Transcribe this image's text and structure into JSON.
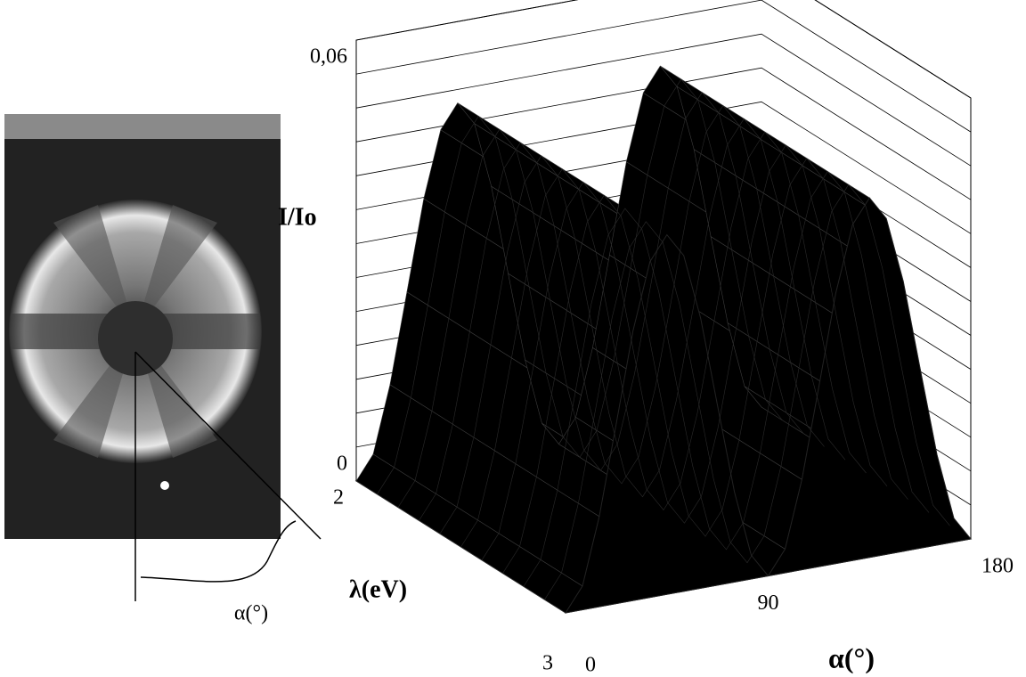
{
  "photo_label": "α(°)",
  "chart_data": {
    "type": "surface",
    "z_label": "I/Io",
    "y_label": "λ(eV)",
    "x_label": "α(°)",
    "xlim": [
      0,
      180
    ],
    "xticks": [
      0,
      90,
      180
    ],
    "ylim": [
      2,
      3
    ],
    "yticks": [
      2,
      3
    ],
    "zlim": [
      0,
      0.065
    ],
    "zticks": [
      0,
      {
        "value": 0.06,
        "label": "0,06"
      }
    ],
    "zgrid": [
      0,
      0.005,
      0.01,
      0.015,
      0.02,
      0.025,
      0.03,
      0.035,
      0.04,
      0.045,
      0.05,
      0.055,
      0.06,
      0.065
    ],
    "alpha": [
      0,
      7.5,
      15,
      22.5,
      30,
      37.5,
      45,
      52.5,
      60,
      67.5,
      75,
      82.5,
      90,
      97.5,
      105,
      112.5,
      120,
      127.5,
      135,
      142.5,
      150,
      157.5,
      165,
      172.5,
      180
    ],
    "intensity": [
      0,
      0.0035,
      0.0133,
      0.0265,
      0.0398,
      0.0495,
      0.053,
      0.0495,
      0.0398,
      0.0265,
      0.0133,
      0.0035,
      0,
      0.0035,
      0.0133,
      0.0265,
      0.0398,
      0.0495,
      0.053,
      0.0495,
      0.0398,
      0.0265,
      0.0133,
      0.0035,
      0
    ],
    "colors": {
      "surface": "#000000",
      "floor": "#808080"
    }
  }
}
